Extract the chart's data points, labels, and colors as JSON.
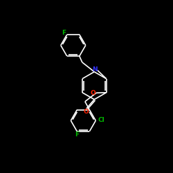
{
  "bg_color": "#000000",
  "bond_color": "#ffffff",
  "N_color": "#3333ff",
  "O_color": "#ff2200",
  "Cl_color": "#00bb00",
  "F_color": "#00bb00",
  "font_size": 6.5,
  "lw": 1.2,
  "xlim": [
    0,
    10
  ],
  "ylim": [
    0,
    10
  ]
}
